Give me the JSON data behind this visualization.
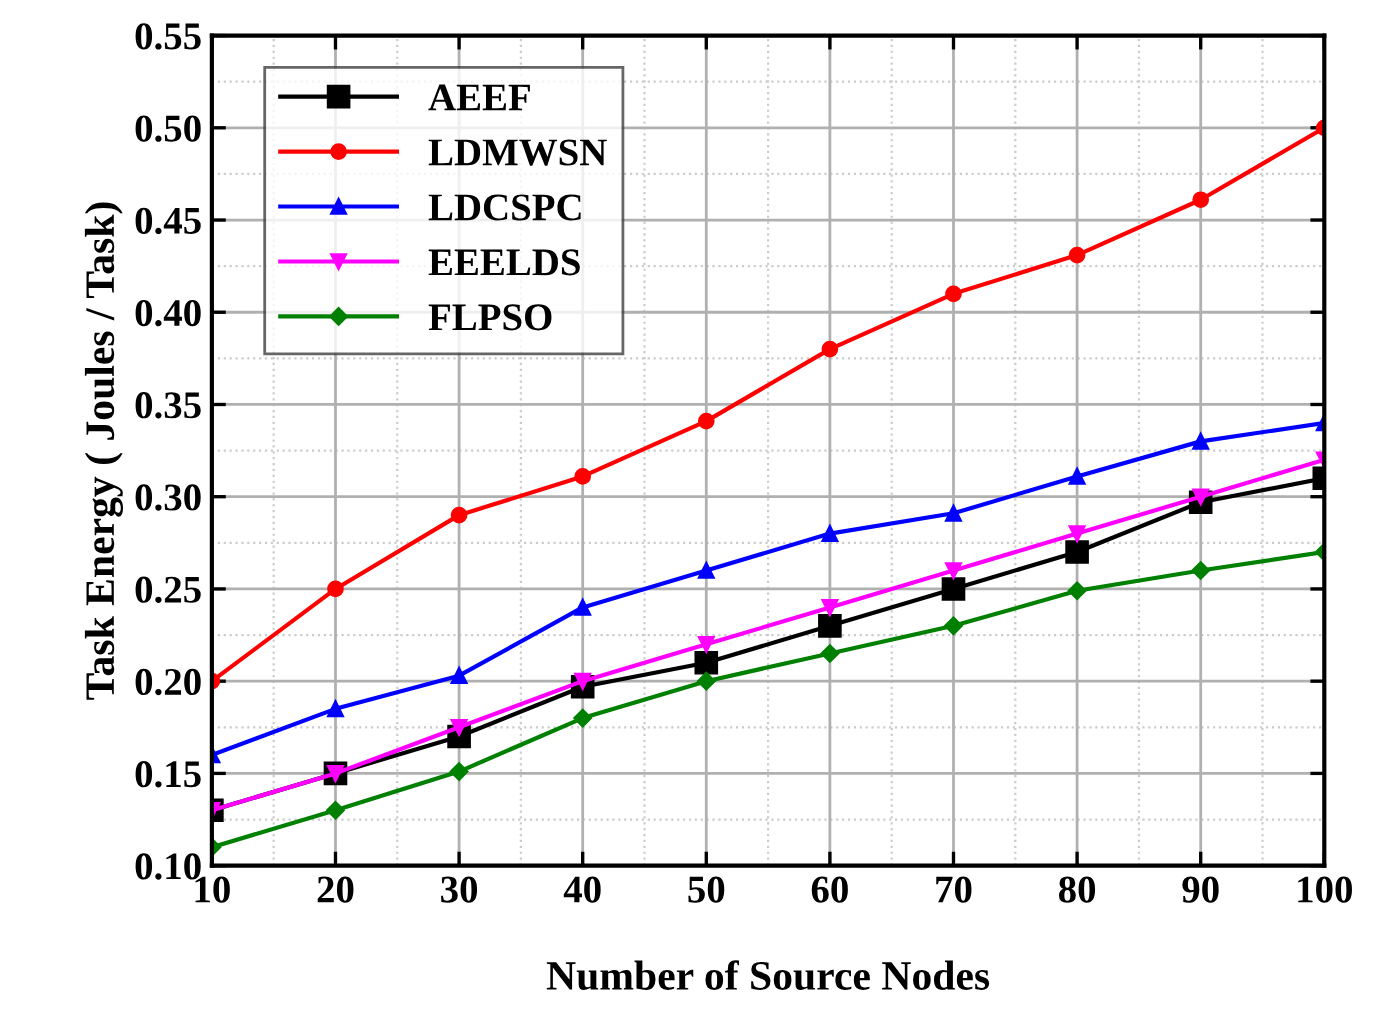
{
  "chart_data": {
    "type": "line",
    "xlabel": "Number of Source Nodes",
    "ylabel": "Task Energy ( Joules / Task)",
    "x": [
      10,
      20,
      30,
      40,
      50,
      60,
      70,
      80,
      90,
      100
    ],
    "series": [
      {
        "name": "AEEF",
        "color": "#000000",
        "marker": "square",
        "values": [
          0.13,
          0.15,
          0.17,
          0.197,
          0.21,
          0.23,
          0.25,
          0.27,
          0.297,
          0.31
        ]
      },
      {
        "name": "LDMWSN",
        "color": "#ff0000",
        "marker": "circle",
        "values": [
          0.2,
          0.25,
          0.29,
          0.311,
          0.341,
          0.38,
          0.41,
          0.431,
          0.461,
          0.5
        ]
      },
      {
        "name": "LDCSPC",
        "color": "#0000ff",
        "marker": "triangle",
        "values": [
          0.16,
          0.185,
          0.203,
          0.24,
          0.26,
          0.28,
          0.291,
          0.311,
          0.33,
          0.34
        ]
      },
      {
        "name": "EEELDS",
        "color": "#ff00ff",
        "marker": "triangle_down",
        "values": [
          0.13,
          0.15,
          0.175,
          0.2,
          0.22,
          0.24,
          0.26,
          0.28,
          0.3,
          0.32
        ]
      },
      {
        "name": "FLPSO",
        "color": "#008000",
        "marker": "diamond",
        "values": [
          0.11,
          0.13,
          0.151,
          0.18,
          0.2,
          0.215,
          0.23,
          0.249,
          0.26,
          0.27
        ]
      }
    ],
    "xlim": [
      10,
      100
    ],
    "xticks": [
      10,
      20,
      30,
      40,
      50,
      60,
      70,
      80,
      90,
      100
    ],
    "ylim": [
      0.1,
      0.55
    ],
    "yticks": [
      {
        "value": 0.1,
        "label": "0.10"
      },
      {
        "value": 0.15,
        "label": "0.15"
      },
      {
        "value": 0.2,
        "label": "0.20"
      },
      {
        "value": 0.25,
        "label": "0.25"
      },
      {
        "value": 0.3,
        "label": "0.30"
      },
      {
        "value": 0.35,
        "label": "0.35"
      },
      {
        "value": 0.4,
        "label": "0.40"
      },
      {
        "value": 0.45,
        "label": "0.45"
      },
      {
        "value": 0.5,
        "label": "0.50"
      },
      {
        "value": 0.55,
        "label": "0.55"
      }
    ],
    "grid": true,
    "legend": "top left",
    "line_style": "solid"
  }
}
